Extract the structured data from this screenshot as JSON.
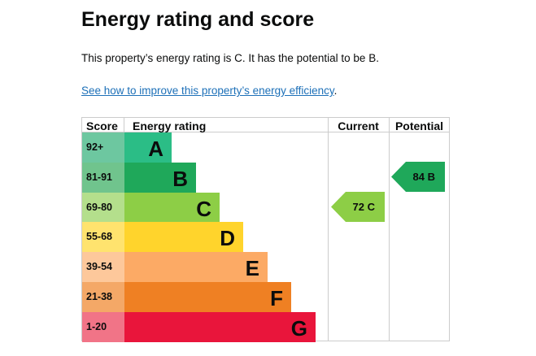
{
  "title": "Energy rating and score",
  "summary": "This property’s energy rating is C. It has the potential to be B.",
  "link_text": "See how to improve this property’s energy efficiency",
  "link_suffix": ".",
  "table": {
    "headers": {
      "score": "Score",
      "rating": "Energy rating",
      "current": "Current",
      "potential": "Potential"
    },
    "bands": [
      {
        "score": "92+",
        "letter": "A",
        "color": "#2bbd86",
        "score_color": "#6dc7a0"
      },
      {
        "score": "81-91",
        "letter": "B",
        "color": "#1fa85a",
        "score_color": "#70c48d"
      },
      {
        "score": "69-80",
        "letter": "C",
        "color": "#8dce46",
        "score_color": "#b4df8c"
      },
      {
        "score": "55-68",
        "letter": "D",
        "color": "#ffd42c",
        "score_color": "#ffe36e"
      },
      {
        "score": "39-54",
        "letter": "E",
        "color": "#fcaa65",
        "score_color": "#fdc89b"
      },
      {
        "score": "21-38",
        "letter": "F",
        "color": "#ef8023",
        "score_color": "#f4a867"
      },
      {
        "score": "1-20",
        "letter": "G",
        "color": "#e9153b",
        "score_color": "#f17487"
      }
    ],
    "current": {
      "label": "72 C",
      "color": "#8dce46"
    },
    "potential": {
      "label": "84 B",
      "color": "#1fa85a"
    }
  }
}
